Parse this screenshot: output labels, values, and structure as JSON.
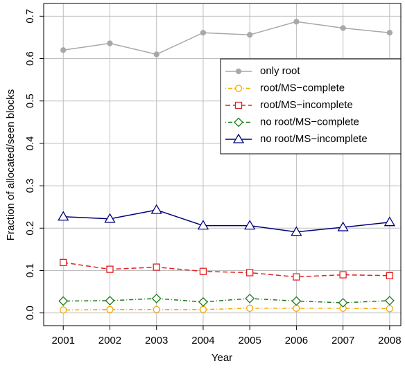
{
  "chart_data": {
    "type": "line",
    "xlabel": "Year",
    "ylabel": "Fraction of allocated/seen blocks",
    "x": [
      2001,
      2002,
      2003,
      2004,
      2005,
      2006,
      2007,
      2008
    ],
    "xlim": [
      2000.58,
      2008.24
    ],
    "xticks": [
      2001,
      2002,
      2003,
      2004,
      2005,
      2006,
      2007,
      2008
    ],
    "ylim": [
      -0.03,
      0.73
    ],
    "yticks": [
      {
        "value": 0,
        "label": "0.0"
      },
      0.1,
      0.2,
      0.3,
      0.4,
      0.5,
      0.6,
      0.7
    ],
    "grid": true,
    "legend": "upper right",
    "series": [
      {
        "name": "only root",
        "color": "#a8a8a8",
        "marker": "dot",
        "linestyle": "solid",
        "values": [
          0.62,
          0.636,
          0.61,
          0.661,
          0.656,
          0.687,
          0.672,
          0.661
        ]
      },
      {
        "name": "root/MS−complete",
        "color": "#f5a800",
        "marker": "circle",
        "linestyle": "dotdash",
        "values": [
          0.007,
          0.008,
          0.008,
          0.008,
          0.011,
          0.011,
          0.011,
          0.01
        ]
      },
      {
        "name": "root/MS−incomplete",
        "color": "#e02020",
        "marker": "square",
        "linestyle": "dashed",
        "values": [
          0.119,
          0.103,
          0.108,
          0.098,
          0.095,
          0.085,
          0.09,
          0.088
        ]
      },
      {
        "name": "no root/MS−complete",
        "color": "#1a7a1a",
        "marker": "diamond",
        "linestyle": "dotdash",
        "values": [
          0.028,
          0.029,
          0.034,
          0.026,
          0.034,
          0.028,
          0.024,
          0.029
        ]
      },
      {
        "name": "no root/MS−incomplete",
        "color": "#00007a",
        "marker": "triangle",
        "linestyle": "solid",
        "values": [
          0.227,
          0.222,
          0.243,
          0.206,
          0.206,
          0.191,
          0.202,
          0.214
        ]
      }
    ]
  }
}
